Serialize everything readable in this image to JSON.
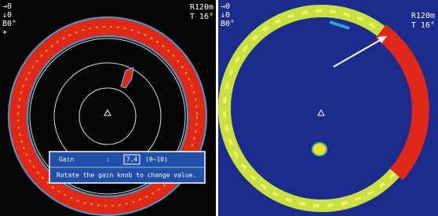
{
  "left_panel": {
    "status": {
      "horizontal": "→0",
      "vertical": "↓0",
      "bearing": "B0°"
    },
    "marker": "+",
    "range": "R120m",
    "tilt": "T 16°",
    "gain_dialog": {
      "label": "Gain",
      "separator": ":",
      "value": "7.4",
      "range": "(0~10)",
      "hint": "Rotate the gain knob to change value."
    }
  },
  "right_panel": {
    "status": {
      "horizontal": "→0",
      "vertical": "↓0",
      "bearing": "B0°"
    },
    "range": "R120m",
    "tilt": "T 16°"
  }
}
